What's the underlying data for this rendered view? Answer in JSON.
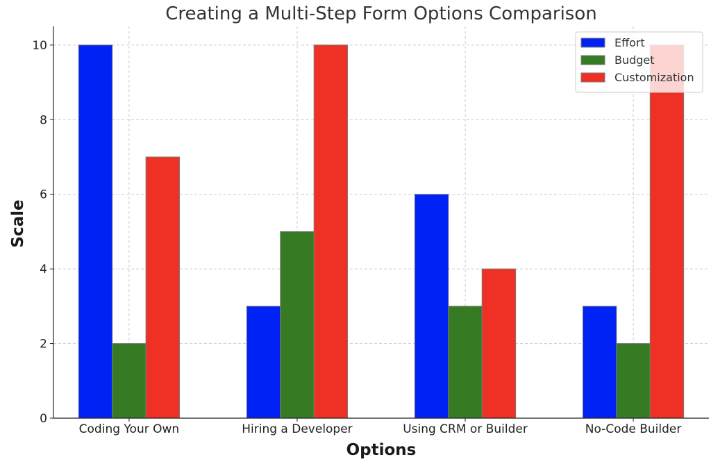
{
  "chart_data": {
    "type": "bar",
    "title": "Creating a Multi-Step Form Options Comparison",
    "xlabel": "Options",
    "ylabel": "Scale",
    "categories": [
      "Coding Your Own",
      "Hiring a Developer",
      "Using CRM or Builder",
      "No-Code Builder"
    ],
    "series": [
      {
        "name": "Effort",
        "color": "#0022f5",
        "values": [
          10,
          3,
          6,
          3
        ]
      },
      {
        "name": "Budget",
        "color": "#367b24",
        "values": [
          2,
          5,
          3,
          2
        ]
      },
      {
        "name": "Customization",
        "color": "#ee3124",
        "values": [
          7,
          10,
          4,
          10
        ]
      }
    ],
    "ylim": [
      0,
      10.5
    ],
    "yticks": [
      0,
      2,
      4,
      6,
      8,
      10
    ],
    "grid": true,
    "legend": "top-right"
  }
}
